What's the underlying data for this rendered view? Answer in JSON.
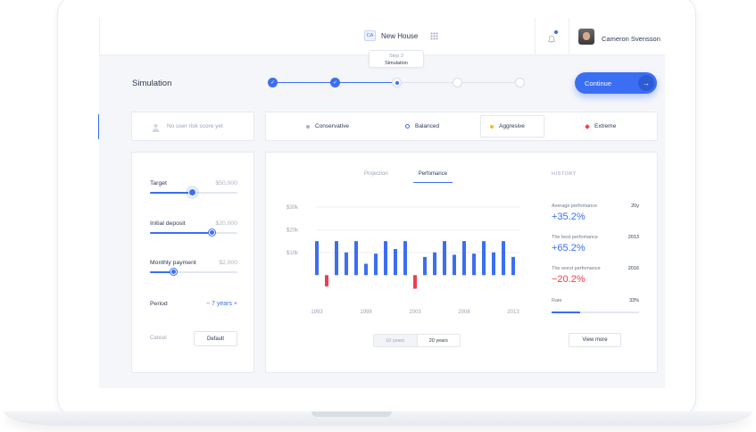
{
  "header": {
    "project_badge": "CA",
    "project_name": "New House",
    "user_name": "Cameron Svensson"
  },
  "page": {
    "title": "Simulation",
    "continue_label": "Continue",
    "stepper": {
      "tooltip_step": "Step 3",
      "tooltip_label": "Simulation",
      "steps": [
        "done",
        "done",
        "current",
        "todo",
        "todo"
      ]
    }
  },
  "risk": {
    "empty_text": "No user risk score yet"
  },
  "profiles": [
    {
      "label": "Conservative",
      "color": "#aab2c0",
      "selected": false
    },
    {
      "label": "Balanced",
      "color": "#3b6ef2",
      "selected": false
    },
    {
      "label": "Aggresive",
      "color": "#f5b82e",
      "selected": true
    },
    {
      "label": "Extreme",
      "color": "#f03e4e",
      "selected": false
    }
  ],
  "params": {
    "target": {
      "label": "Target",
      "value": "$50,000",
      "fill": 0.48
    },
    "deposit": {
      "label": "Initial deposit",
      "value": "$20,000",
      "fill": 0.71
    },
    "monthly": {
      "label": "Monthly payment",
      "value": "$2,000",
      "fill": 0.27
    },
    "period": {
      "label": "Period",
      "minus": "−",
      "value": "7 years",
      "plus": "+"
    },
    "cancel_label": "Cancel",
    "default_label": "Default"
  },
  "chart": {
    "tabs": [
      "Projection",
      "Perfomance"
    ],
    "active_tab": 1,
    "range_options": [
      "10 years",
      "20 years"
    ],
    "active_range": 1
  },
  "chart_data": {
    "type": "bar",
    "ylabels": [
      "$30k",
      "$20k",
      "$10k"
    ],
    "xlabels": [
      "1993",
      "1998",
      "2003",
      "2008",
      "2013"
    ],
    "y_ticks": [
      30000,
      20000,
      10000
    ],
    "ylim": [
      -7000,
      30000
    ],
    "grid": true,
    "bars": [
      {
        "x": 1993,
        "value": 15000
      },
      {
        "x": 1994,
        "value": -5000
      },
      {
        "x": 1995,
        "value": 15000
      },
      {
        "x": 1996,
        "value": 10000
      },
      {
        "x": 1997,
        "value": 15000
      },
      {
        "x": 1998,
        "value": 5000
      },
      {
        "x": 1999,
        "value": 9500
      },
      {
        "x": 2000,
        "value": 15000
      },
      {
        "x": 2001,
        "value": 11500
      },
      {
        "x": 2002,
        "value": 15000
      },
      {
        "x": 2003,
        "value": -6000
      },
      {
        "x": 2004,
        "value": 8000
      },
      {
        "x": 2005,
        "value": 10000
      },
      {
        "x": 2006,
        "value": 15000
      },
      {
        "x": 2007,
        "value": 9000
      },
      {
        "x": 2008,
        "value": 15000
      },
      {
        "x": 2009,
        "value": 9500
      },
      {
        "x": 2010,
        "value": 15000
      },
      {
        "x": 2011,
        "value": 10000
      },
      {
        "x": 2012,
        "value": 15000
      },
      {
        "x": 2013,
        "value": 8000
      }
    ]
  },
  "history": {
    "title": "HISTORY",
    "avg": {
      "label": "Average perfomance",
      "period": "20y",
      "value": "+35.2%"
    },
    "best": {
      "label": "The best perfomance",
      "year": "2013",
      "value": "+65.2%"
    },
    "worst": {
      "label": "The worst perfomance",
      "year": "2016",
      "value": "−20.2%"
    },
    "rate": {
      "label": "Rate",
      "value": "33%",
      "fill": 0.33
    },
    "view_more": "View more"
  },
  "colors": {
    "accent": "#3b6ef2",
    "negative": "#f03e4e"
  }
}
